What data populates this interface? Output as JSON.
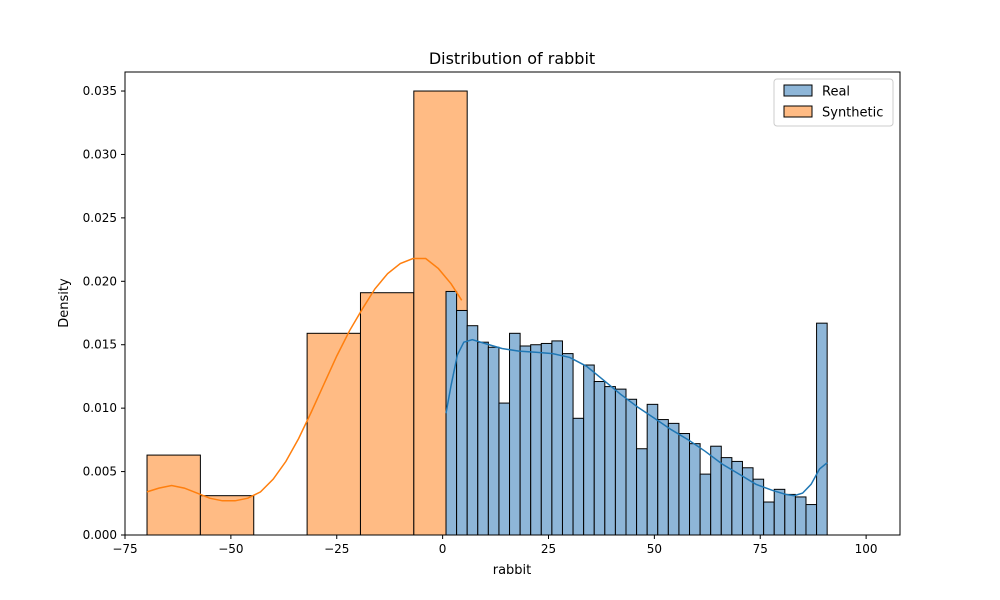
{
  "chart_data": {
    "type": "histogram",
    "title": "Distribution of rabbit",
    "xlabel": "rabbit",
    "ylabel": "Density",
    "xlim": [
      -75,
      108
    ],
    "ylim": [
      0,
      0.0365
    ],
    "xticks": [
      -75,
      -50,
      -25,
      0,
      25,
      50,
      75,
      100
    ],
    "xtick_labels": [
      "−75",
      "−50",
      "−25",
      "0",
      "25",
      "50",
      "75",
      "100"
    ],
    "yticks": [
      0,
      0.005,
      0.01,
      0.015,
      0.02,
      0.025,
      0.03,
      0.035
    ],
    "ytick_labels": [
      "0.000",
      "0.005",
      "0.010",
      "0.015",
      "0.020",
      "0.025",
      "0.030",
      "0.035"
    ],
    "grid": false,
    "legend": {
      "position": "top-right",
      "entries": [
        "Real",
        "Synthetic"
      ]
    },
    "series": [
      {
        "name": "Synthetic",
        "color": "#ff7f0e",
        "fill": "#ffbb84",
        "bins": [
          {
            "x0": -69.8,
            "x1": -57.2,
            "density": 0.0063
          },
          {
            "x0": -57.2,
            "x1": -44.6,
            "density": 0.0031
          },
          {
            "x0": -44.6,
            "x1": -32.0,
            "density": 0.0
          },
          {
            "x0": -32.0,
            "x1": -19.4,
            "density": 0.0159
          },
          {
            "x0": -19.4,
            "x1": -6.8,
            "density": 0.0191
          },
          {
            "x0": -6.8,
            "x1": 5.8,
            "density": 0.035
          }
        ],
        "kde": [
          [
            -69.8,
            0.0034
          ],
          [
            -67,
            0.0037
          ],
          [
            -64,
            0.0039
          ],
          [
            -61,
            0.0037
          ],
          [
            -58,
            0.0033
          ],
          [
            -55,
            0.0029
          ],
          [
            -52,
            0.0027
          ],
          [
            -49,
            0.0027
          ],
          [
            -46,
            0.0029
          ],
          [
            -43,
            0.0034
          ],
          [
            -40,
            0.0044
          ],
          [
            -37,
            0.0058
          ],
          [
            -34,
            0.0076
          ],
          [
            -31,
            0.0097
          ],
          [
            -28,
            0.0119
          ],
          [
            -25,
            0.0141
          ],
          [
            -22,
            0.0161
          ],
          [
            -19,
            0.0178
          ],
          [
            -16,
            0.0194
          ],
          [
            -13,
            0.0206
          ],
          [
            -10,
            0.0214
          ],
          [
            -7,
            0.0218
          ],
          [
            -4,
            0.0218
          ],
          [
            -1,
            0.021
          ],
          [
            2,
            0.0198
          ],
          [
            4.5,
            0.0185
          ]
        ]
      },
      {
        "name": "Real",
        "color": "#1f77b4",
        "fill": "#8eb6d8",
        "bins": [
          {
            "x0": 0.8,
            "x1": 3.3,
            "density": 0.0192
          },
          {
            "x0": 3.3,
            "x1": 5.8,
            "density": 0.0177
          },
          {
            "x0": 5.8,
            "x1": 8.3,
            "density": 0.0165
          },
          {
            "x0": 8.3,
            "x1": 10.8,
            "density": 0.0152
          },
          {
            "x0": 10.8,
            "x1": 13.3,
            "density": 0.0148
          },
          {
            "x0": 13.3,
            "x1": 15.8,
            "density": 0.0104
          },
          {
            "x0": 15.8,
            "x1": 18.3,
            "density": 0.0159
          },
          {
            "x0": 18.3,
            "x1": 20.8,
            "density": 0.0149
          },
          {
            "x0": 20.8,
            "x1": 23.3,
            "density": 0.015
          },
          {
            "x0": 23.3,
            "x1": 25.8,
            "density": 0.0151
          },
          {
            "x0": 25.8,
            "x1": 28.3,
            "density": 0.0153
          },
          {
            "x0": 28.3,
            "x1": 30.8,
            "density": 0.0143
          },
          {
            "x0": 30.8,
            "x1": 33.3,
            "density": 0.0092
          },
          {
            "x0": 33.3,
            "x1": 35.8,
            "density": 0.0134
          },
          {
            "x0": 35.8,
            "x1": 38.3,
            "density": 0.0121
          },
          {
            "x0": 38.3,
            "x1": 40.8,
            "density": 0.0117
          },
          {
            "x0": 40.8,
            "x1": 43.3,
            "density": 0.0115
          },
          {
            "x0": 43.3,
            "x1": 45.8,
            "density": 0.0107
          },
          {
            "x0": 45.8,
            "x1": 48.3,
            "density": 0.0068
          },
          {
            "x0": 48.3,
            "x1": 50.8,
            "density": 0.0103
          },
          {
            "x0": 50.8,
            "x1": 53.3,
            "density": 0.0091
          },
          {
            "x0": 53.3,
            "x1": 55.8,
            "density": 0.0088
          },
          {
            "x0": 55.8,
            "x1": 58.3,
            "density": 0.008
          },
          {
            "x0": 58.3,
            "x1": 60.8,
            "density": 0.0072
          },
          {
            "x0": 60.8,
            "x1": 63.3,
            "density": 0.0048
          },
          {
            "x0": 63.3,
            "x1": 65.8,
            "density": 0.007
          },
          {
            "x0": 65.8,
            "x1": 68.3,
            "density": 0.0061
          },
          {
            "x0": 68.3,
            "x1": 70.8,
            "density": 0.0058
          },
          {
            "x0": 70.8,
            "x1": 73.3,
            "density": 0.0053
          },
          {
            "x0": 73.3,
            "x1": 75.8,
            "density": 0.0044
          },
          {
            "x0": 75.8,
            "x1": 78.3,
            "density": 0.0026
          },
          {
            "x0": 78.3,
            "x1": 80.8,
            "density": 0.0036
          },
          {
            "x0": 80.8,
            "x1": 83.3,
            "density": 0.0032
          },
          {
            "x0": 83.3,
            "x1": 85.8,
            "density": 0.003
          },
          {
            "x0": 85.8,
            "x1": 88.3,
            "density": 0.0024
          },
          {
            "x0": 88.3,
            "x1": 90.8,
            "density": 0.0167
          }
        ],
        "kde": [
          [
            0.8,
            0.0096
          ],
          [
            2,
            0.0118
          ],
          [
            3.5,
            0.0142
          ],
          [
            5,
            0.0152
          ],
          [
            7,
            0.0154
          ],
          [
            10,
            0.0151
          ],
          [
            14,
            0.0147
          ],
          [
            18,
            0.0145
          ],
          [
            22,
            0.0144
          ],
          [
            26,
            0.0143
          ],
          [
            30,
            0.014
          ],
          [
            34,
            0.0133
          ],
          [
            38,
            0.0122
          ],
          [
            42,
            0.0111
          ],
          [
            46,
            0.0101
          ],
          [
            50,
            0.0092
          ],
          [
            54,
            0.0083
          ],
          [
            58,
            0.0075
          ],
          [
            62,
            0.0066
          ],
          [
            66,
            0.0056
          ],
          [
            70,
            0.0048
          ],
          [
            74,
            0.004
          ],
          [
            78,
            0.0035
          ],
          [
            81,
            0.0032
          ],
          [
            83,
            0.0031
          ],
          [
            85,
            0.0033
          ],
          [
            87,
            0.004
          ],
          [
            89,
            0.0052
          ],
          [
            90.8,
            0.0057
          ]
        ]
      }
    ]
  }
}
